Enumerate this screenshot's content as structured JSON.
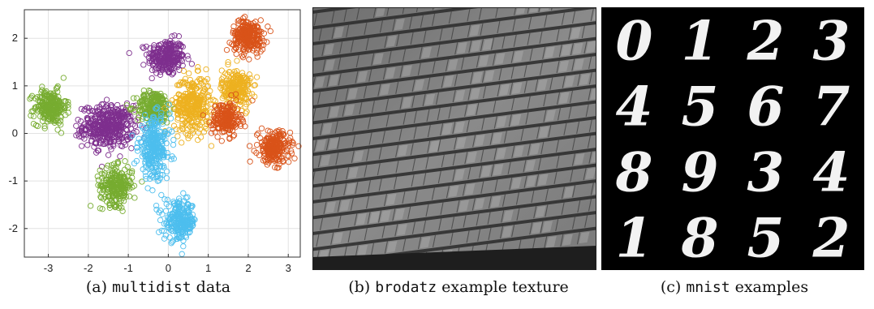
{
  "figure": {
    "captions": [
      {
        "label": "(a)",
        "mono": "multidist",
        "rest": "data"
      },
      {
        "label": "(b)",
        "mono": "brodatz",
        "rest": "example texture"
      },
      {
        "label": "(c)",
        "mono": "mnist",
        "rest": "examples"
      }
    ]
  },
  "chart_data": {
    "type": "scatter",
    "title": "",
    "xlabel": "",
    "ylabel": "",
    "xlim": [
      -3.6,
      3.3
    ],
    "ylim": [
      -2.6,
      2.6
    ],
    "grid": true,
    "x_ticks": [
      "-3",
      "-2",
      "-1",
      "0",
      "1",
      "2",
      "3"
    ],
    "y_ticks": [
      "2",
      "1",
      "0",
      "-1",
      "-2"
    ],
    "x_tick_values": [
      -3,
      -2,
      -1,
      0,
      1,
      2,
      3
    ],
    "y_tick_values": [
      2,
      1,
      0,
      -1,
      -2
    ],
    "marker": "open-circle",
    "clusters": [
      {
        "color": "#7e2f8e",
        "center": [
          -0.05,
          1.6
        ],
        "spread": [
          0.23,
          0.19
        ],
        "n": 260
      },
      {
        "color": "#7e2f8e",
        "center": [
          -1.5,
          0.15
        ],
        "spread": [
          0.32,
          0.22
        ],
        "n": 420
      },
      {
        "color": "#77ac30",
        "center": [
          -2.95,
          0.55
        ],
        "spread": [
          0.2,
          0.18
        ],
        "n": 250
      },
      {
        "color": "#77ac30",
        "center": [
          -0.35,
          0.55
        ],
        "spread": [
          0.22,
          0.17
        ],
        "n": 220
      },
      {
        "color": "#77ac30",
        "center": [
          -1.3,
          -1.1
        ],
        "spread": [
          0.2,
          0.2
        ],
        "n": 240
      },
      {
        "color": "#edb120",
        "center": [
          0.6,
          0.6
        ],
        "spread": [
          0.23,
          0.3
        ],
        "n": 330
      },
      {
        "color": "#edb120",
        "center": [
          1.7,
          0.95
        ],
        "spread": [
          0.18,
          0.2
        ],
        "n": 220
      },
      {
        "color": "#d95319",
        "center": [
          2.0,
          2.05
        ],
        "spread": [
          0.2,
          0.17
        ],
        "n": 240
      },
      {
        "color": "#d95319",
        "center": [
          1.45,
          0.3
        ],
        "spread": [
          0.18,
          0.18
        ],
        "n": 200
      },
      {
        "color": "#d95319",
        "center": [
          2.65,
          -0.3
        ],
        "spread": [
          0.2,
          0.17
        ],
        "n": 220
      },
      {
        "color": "#4dbeee",
        "center": [
          -0.35,
          -0.3
        ],
        "spread": [
          0.2,
          0.32
        ],
        "n": 300
      },
      {
        "color": "#4dbeee",
        "center": [
          0.3,
          -1.85
        ],
        "spread": [
          0.2,
          0.2
        ],
        "n": 240
      }
    ]
  },
  "texture": {
    "colors": {
      "base": "#8a8a8a",
      "dark": "#2a2a2a",
      "light": "#bdbdbd"
    }
  },
  "mnist": {
    "digits": [
      [
        "0",
        "1",
        "2",
        "3"
      ],
      [
        "4",
        "5",
        "6",
        "7"
      ],
      [
        "8",
        "9",
        "3",
        "4"
      ],
      [
        "1",
        "8",
        "5",
        "2"
      ]
    ]
  }
}
